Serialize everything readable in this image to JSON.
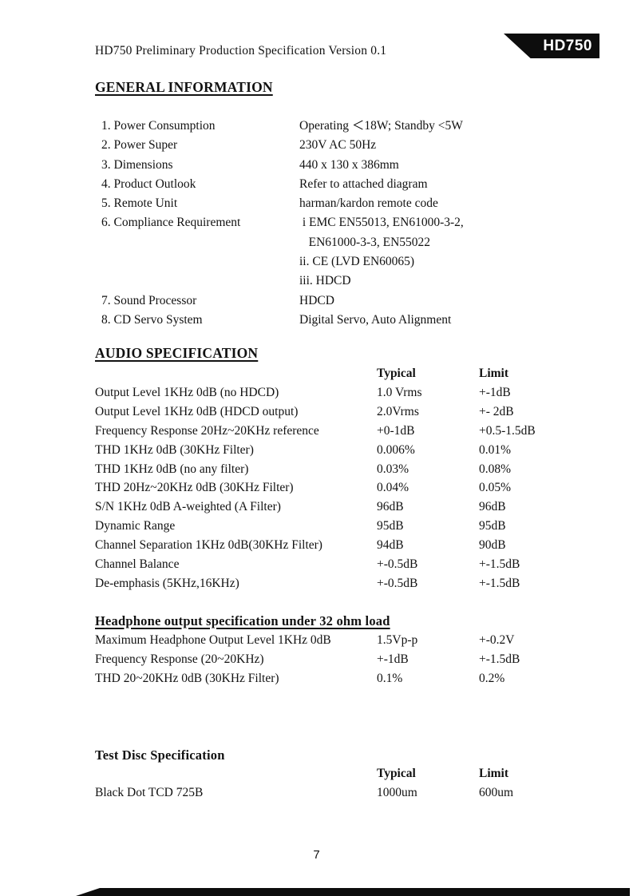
{
  "colors": {
    "ink": "#121212",
    "paper": "#ffffff",
    "badge_bg": "#0d0d0d"
  },
  "header": {
    "title": "HD750 Preliminary Production Specification Version 0.1",
    "badge_label": "HD750"
  },
  "sections": {
    "general": {
      "heading": "GENERAL INFORMATION",
      "items": [
        {
          "label": "1. Power Consumption",
          "lines": [
            "Operating ＜18W; Standby <5W"
          ]
        },
        {
          "label": "2. Power Super",
          "lines": [
            "230V AC 50Hz"
          ]
        },
        {
          "label": "3. Dimensions",
          "lines": [
            "440 x 130 x 386mm"
          ]
        },
        {
          "label": "4. Product Outlook",
          "lines": [
            "Refer to attached diagram"
          ]
        },
        {
          "label": "5. Remote Unit",
          "lines": [
            "harman/kardon remote code"
          ]
        },
        {
          "label": "6. Compliance Requirement",
          "lines": [
            " i EMC EN55013, EN61000-3-2,",
            "   EN61000-3-3, EN55022",
            "ii. CE (LVD EN60065)",
            "iii. HDCD"
          ]
        },
        {
          "label": "7. Sound Processor",
          "lines": [
            "HDCD"
          ]
        },
        {
          "label": "8. CD Servo System",
          "lines": [
            "Digital Servo, Auto Alignment"
          ]
        }
      ]
    },
    "audio": {
      "heading": "AUDIO SPECIFICATION",
      "columns": {
        "typical": "Typical",
        "limit": "Limit"
      },
      "rows": [
        {
          "label": "Output Level 1KHz 0dB (no HDCD)",
          "typical": "1.0 Vrms",
          "limit": "+-1dB"
        },
        {
          "label": "Output Level 1KHz 0dB (HDCD output)",
          "typical": "2.0Vrms",
          "limit": "+- 2dB"
        },
        {
          "label": "Frequency Response 20Hz~20KHz reference",
          "typical": "+0-1dB",
          "limit": "+0.5-1.5dB"
        },
        {
          "label": "THD 1KHz 0dB (30KHz Filter)",
          "typical": "0.006%",
          "limit": "0.01%"
        },
        {
          "label": "THD 1KHz 0dB (no any filter)",
          "typical": "0.03%",
          "limit": "0.08%"
        },
        {
          "label": "THD 20Hz~20KHz 0dB (30KHz Filter)",
          "typical": "0.04%",
          "limit": "0.05%"
        },
        {
          "label": "S/N 1KHz 0dB A-weighted (A Filter)",
          "typical": "96dB",
          "limit": "96dB"
        },
        {
          "label": "Dynamic Range",
          "typical": "95dB",
          "limit": "95dB"
        },
        {
          "label": "Channel Separation 1KHz 0dB(30KHz Filter)",
          "typical": "94dB",
          "limit": "90dB"
        },
        {
          "label": "Channel Balance",
          "typical": "+-0.5dB",
          "limit": "+-1.5dB"
        },
        {
          "label": "De-emphasis (5KHz,16KHz)",
          "typical": "+-0.5dB",
          "limit": "+-1.5dB"
        }
      ]
    },
    "headphone": {
      "heading": "Headphone output specification under 32 ohm load",
      "rows": [
        {
          "label": "Maximum Headphone Output Level 1KHz 0dB",
          "typical": "1.5Vp-p",
          "limit": "+-0.2V"
        },
        {
          "label": "Frequency Response (20~20KHz)",
          "typical": "+-1dB",
          "limit": "+-1.5dB"
        },
        {
          "label": "THD 20~20KHz 0dB (30KHz Filter)",
          "typical": "0.1%",
          "limit": "0.2%"
        }
      ]
    },
    "test_disc": {
      "heading": "Test Disc Specification",
      "columns": {
        "typical": "Typical",
        "limit": "Limit"
      },
      "rows": [
        {
          "label": "Black Dot TCD 725B",
          "typical": "1000um",
          "limit": "600um"
        }
      ]
    }
  },
  "footer": {
    "page_number": "7"
  }
}
